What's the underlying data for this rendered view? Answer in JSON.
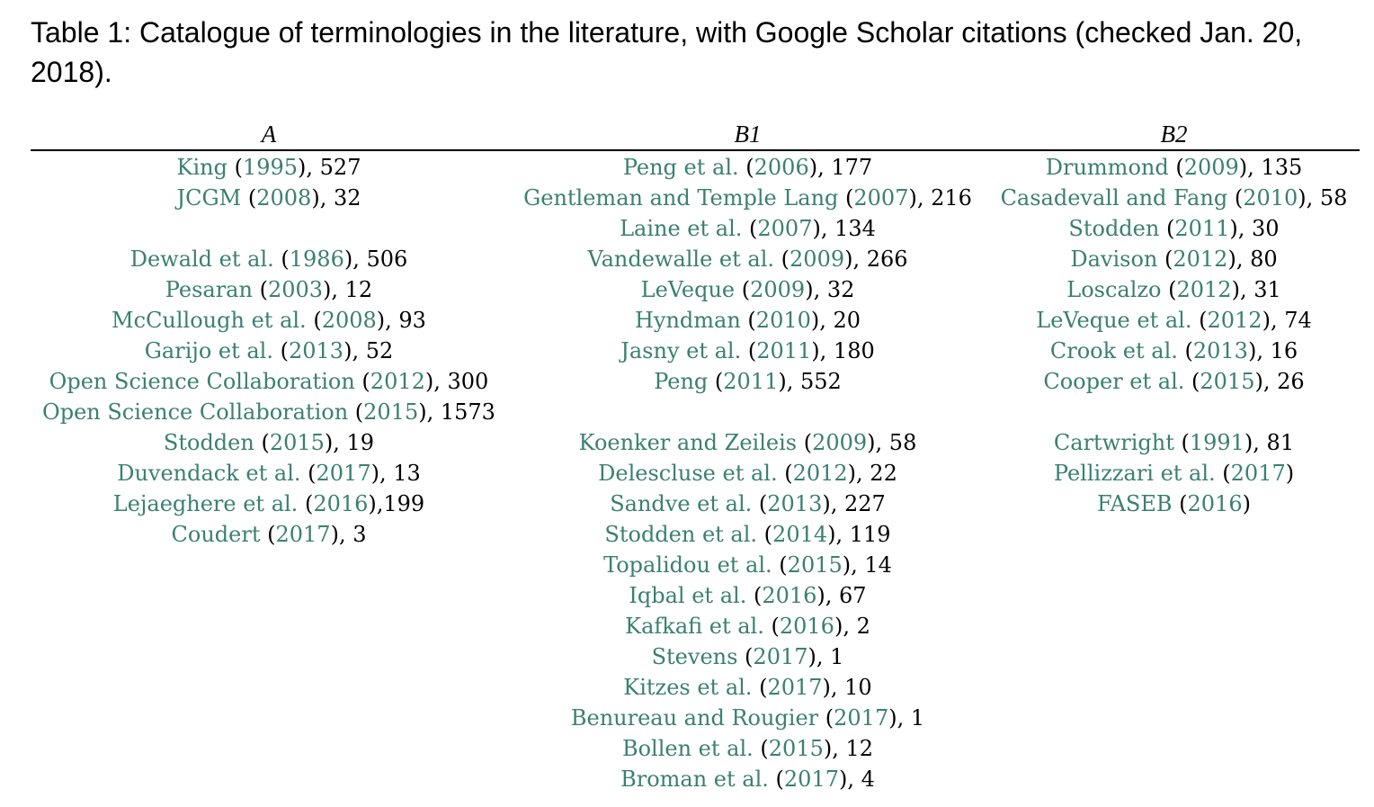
{
  "caption": "Table 1: Catalogue of terminologies in the literature, with Google Scholar citations (checked Jan. 20, 2018).",
  "colors": {
    "citation_link": "#3a8070",
    "text": "#000000"
  },
  "columns": {
    "A": {
      "header": "A",
      "entries": [
        {
          "author": "King",
          "year": "1995",
          "tail": ", 527"
        },
        {
          "author": "JCGM",
          "year": "2008",
          "tail": ", 32"
        },
        null,
        {
          "author": "Dewald et al.",
          "year": "1986",
          "tail": ", 506"
        },
        {
          "author": "Pesaran",
          "year": "2003",
          "tail": ", 12"
        },
        {
          "author": "McCullough et al.",
          "year": "2008",
          "tail": ", 93"
        },
        {
          "author": "Garijo et al.",
          "year": "2013",
          "tail": ", 52"
        },
        {
          "author": "Open Science Collaboration",
          "year": "2012",
          "tail": ", 300"
        },
        {
          "author": "Open Science Collaboration",
          "year": "2015",
          "tail": ", 1573"
        },
        {
          "author": "Stodden",
          "year": "2015",
          "tail": ", 19"
        },
        {
          "author": "Duvendack et al.",
          "year": "2017",
          "tail": ", 13"
        },
        {
          "author": "Lejaeghere et al.",
          "year": "2016",
          "tail": ",199"
        },
        {
          "author": "Coudert",
          "year": "2017",
          "tail": ", 3"
        }
      ]
    },
    "B1": {
      "header": "B1",
      "entries": [
        {
          "author": "Peng et al.",
          "year": "2006",
          "tail": ", 177"
        },
        {
          "author": "Gentleman and Temple Lang",
          "year": "2007",
          "tail": ", 216"
        },
        {
          "author": "Laine et al.",
          "year": "2007",
          "tail": ", 134"
        },
        {
          "author": "Vandewalle et al.",
          "year": "2009",
          "tail": ", 266"
        },
        {
          "author": "LeVeque",
          "year": "2009",
          "tail": ", 32"
        },
        {
          "author": "Hyndman",
          "year": "2010",
          "tail": ", 20"
        },
        {
          "author": "Jasny et al.",
          "year": "2011",
          "tail": ", 180"
        },
        {
          "author": "Peng",
          "year": "2011",
          "tail": ", 552"
        },
        null,
        {
          "author": "Koenker and Zeileis",
          "year": "2009",
          "tail": ", 58"
        },
        {
          "author": "Delescluse et al.",
          "year": "2012",
          "tail": ", 22"
        },
        {
          "author": "Sandve et al.",
          "year": "2013",
          "tail": ", 227"
        },
        {
          "author": "Stodden et al.",
          "year": "2014",
          "tail": ", 119"
        },
        {
          "author": "Topalidou et al.",
          "year": "2015",
          "tail": ", 14"
        },
        {
          "author": "Iqbal et al.",
          "year": "2016",
          "tail": ", 67"
        },
        {
          "author": "Kafkafi et al.",
          "year": "2016",
          "tail": ", 2"
        },
        {
          "author": "Stevens",
          "year": "2017",
          "tail": ", 1"
        },
        {
          "author": "Kitzes et al.",
          "year": "2017",
          "tail": ", 10"
        },
        {
          "author": "Benureau and Rougier",
          "year": "2017",
          "tail": ", 1"
        },
        {
          "author": "Bollen et al.",
          "year": "2015",
          "tail": ", 12"
        },
        {
          "author": "Broman et al.",
          "year": "2017",
          "tail": ", 4"
        }
      ]
    },
    "B2": {
      "header": "B2",
      "entries": [
        {
          "author": "Drummond",
          "year": "2009",
          "tail": ", 135"
        },
        {
          "author": "Casadevall and Fang",
          "year": "2010",
          "tail": ", 58"
        },
        {
          "author": "Stodden",
          "year": "2011",
          "tail": ", 30"
        },
        {
          "author": "Davison",
          "year": "2012",
          "tail": ", 80"
        },
        {
          "author": "Loscalzo",
          "year": "2012",
          "tail": ", 31"
        },
        {
          "author": "LeVeque et al.",
          "year": "2012",
          "tail": ", 74"
        },
        {
          "author": "Crook et al.",
          "year": "2013",
          "tail": ", 16"
        },
        {
          "author": "Cooper et al.",
          "year": "2015",
          "tail": ", 26"
        },
        null,
        {
          "author": "Cartwright",
          "year": "1991",
          "tail": ", 81"
        },
        {
          "author": "Pellizzari et al.",
          "year": "2017",
          "tail": ""
        },
        {
          "author": "FASEB",
          "year": "2016",
          "tail": ""
        }
      ]
    }
  }
}
